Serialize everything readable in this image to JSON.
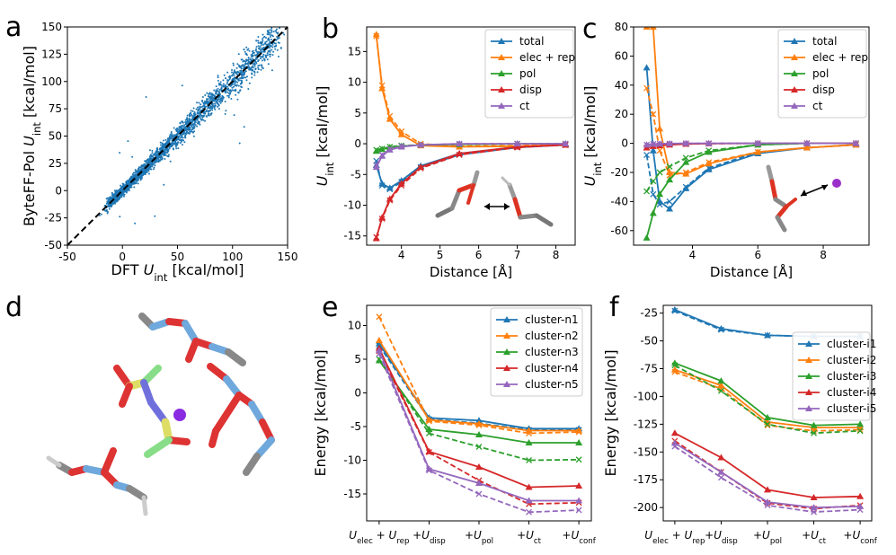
{
  "figure": {
    "panel_labels": [
      "a",
      "b",
      "c",
      "d",
      "e",
      "f"
    ]
  },
  "chart_data": [
    {
      "panel": "a",
      "type": "scatter",
      "xlabel_main": "DFT",
      "xlabel_sub": "int",
      "xlabel_unit": "[kcal/mol]",
      "ylabel_main": "ByteFF-Pol",
      "ylabel_sub": "int",
      "ylabel_unit": "[kcal/mol]",
      "u_symbol": "U",
      "xlim": [
        -50,
        150
      ],
      "ylim": [
        -50,
        150
      ],
      "xticks": [
        -50,
        0,
        50,
        100,
        150
      ],
      "yticks": [
        -50,
        -25,
        0,
        25,
        50,
        75,
        100,
        125,
        150
      ],
      "color": "#1f77b4",
      "point_count": 2500,
      "trend": {
        "slope": 1.0,
        "spread": 0.12
      },
      "reference_line": {
        "style": "dashed",
        "color": "#000000",
        "from": [
          -50,
          -50
        ],
        "to": [
          150,
          150
        ]
      }
    },
    {
      "panel": "b",
      "type": "line",
      "xlabel": "Distance [Å]",
      "ylabel_main": "U",
      "ylabel_sub": "int",
      "ylabel_unit": "[kcal/mol]",
      "xlim": [
        3.1,
        8.5
      ],
      "ylim": [
        -16.5,
        19
      ],
      "xticks": [
        4,
        5,
        6,
        7,
        8
      ],
      "yticks": [
        -15,
        -10,
        -5,
        0,
        5,
        10,
        15
      ],
      "legend_position": "top-right",
      "x": [
        3.35,
        3.5,
        3.7,
        4.0,
        4.5,
        5.5,
        7.0,
        8.25
      ],
      "series": [
        {
          "name": "total",
          "color": "#1f77b4",
          "values": [
            -3.5,
            -6.5,
            -7.2,
            -6.0,
            -3.6,
            -1.6,
            -0.5,
            -0.2
          ],
          "ref": [
            -2.8,
            -6.8,
            -7.4,
            -6.2,
            -3.8,
            -1.8,
            -0.6,
            -0.2
          ]
        },
        {
          "name": "elec + rep",
          "color": "#ff7f0e",
          "values": [
            17.8,
            9.0,
            4.0,
            1.5,
            -0.3,
            -0.5,
            -0.4,
            -0.2
          ],
          "ref": [
            17.5,
            9.5,
            4.5,
            2.0,
            0.0,
            -0.4,
            -0.3,
            -0.2
          ]
        },
        {
          "name": "pol",
          "color": "#2ca02c",
          "values": [
            -1.2,
            -0.9,
            -0.6,
            -0.4,
            -0.2,
            -0.1,
            0.0,
            0.0
          ],
          "ref": [
            -1.0,
            -0.8,
            -0.5,
            -0.3,
            -0.2,
            -0.1,
            0.0,
            0.0
          ]
        },
        {
          "name": "disp",
          "color": "#d62728",
          "values": [
            -15.4,
            -12.0,
            -9.0,
            -6.5,
            -3.8,
            -1.6,
            -0.5,
            -0.2
          ],
          "ref": [
            -15.2,
            -12.2,
            -9.2,
            -6.8,
            -4.0,
            -1.8,
            -0.6,
            -0.2
          ]
        },
        {
          "name": "ct",
          "color": "#9467bd",
          "values": [
            -3.8,
            -2.0,
            -1.0,
            -0.5,
            -0.2,
            0.0,
            0.0,
            0.0
          ],
          "ref": [
            -3.5,
            -1.8,
            -0.9,
            -0.4,
            -0.2,
            0.0,
            0.0,
            0.0
          ]
        }
      ]
    },
    {
      "panel": "c",
      "type": "line",
      "xlabel": "Distance [Å]",
      "ylabel_main": "U",
      "ylabel_sub": "int",
      "ylabel_unit": "[kcal/mol]",
      "xlim": [
        2.2,
        9.4
      ],
      "ylim": [
        -70,
        80
      ],
      "xticks": [
        4,
        6,
        8
      ],
      "yticks": [
        -60,
        -40,
        -20,
        0,
        20,
        40,
        60,
        80
      ],
      "legend_position": "top-right",
      "x": [
        2.6,
        2.8,
        3.0,
        3.3,
        3.8,
        4.5,
        6.0,
        7.5,
        9.0
      ],
      "series": [
        {
          "name": "total",
          "color": "#1f77b4",
          "values": [
            52,
            -5,
            -40,
            -45,
            -31,
            -18,
            -7,
            -3,
            -1
          ],
          "ref": [
            -8,
            -35,
            -42,
            -40,
            -30,
            -17,
            -6,
            -3,
            -1
          ]
        },
        {
          "name": "elec + rep",
          "color": "#ff7f0e",
          "values": [
            80,
            80,
            10,
            -20,
            -21,
            -14,
            -6,
            -3,
            -1
          ],
          "ref": [
            38,
            20,
            -5,
            -22,
            -20,
            -13,
            -6,
            -3,
            -1
          ]
        },
        {
          "name": "pol",
          "color": "#2ca02c",
          "values": [
            -65,
            -48,
            -35,
            -25,
            -13,
            -6,
            -1,
            0,
            0
          ],
          "ref": [
            -33,
            -26,
            -20,
            -16,
            -10,
            -5,
            -1,
            0,
            0
          ]
        },
        {
          "name": "disp",
          "color": "#d62728",
          "values": [
            -3,
            -2,
            -1.5,
            -1,
            -0.5,
            -0.2,
            0,
            0,
            0
          ],
          "ref": [
            -3,
            -2,
            -1.5,
            -1,
            -0.5,
            -0.2,
            0,
            0,
            0
          ]
        },
        {
          "name": "ct",
          "color": "#9467bd",
          "values": [
            -1,
            -0.5,
            -0.3,
            -0.2,
            0,
            0,
            0,
            0,
            0
          ],
          "ref": [
            -1,
            -0.5,
            -0.3,
            -0.2,
            0,
            0,
            0,
            0,
            0
          ]
        }
      ]
    },
    {
      "panel": "e",
      "type": "line",
      "ylabel": "Energy [kcal/mol]",
      "ylim": [
        -19,
        13
      ],
      "yticks": [
        -15,
        -10,
        -5,
        0,
        5,
        10
      ],
      "legend_position": "top-right",
      "categories": [
        "elec+rep",
        "disp",
        "pol",
        "ct",
        "conf"
      ],
      "tick_labels": [
        {
          "parts": [
            [
              "U",
              "i"
            ],
            [
              "elec",
              "s"
            ],
            [
              " + ",
              "n"
            ],
            [
              "U",
              "i"
            ],
            [
              "rep",
              "s"
            ]
          ]
        },
        {
          "parts": [
            [
              "+",
              "n"
            ],
            [
              "U",
              "i"
            ],
            [
              "disp",
              "s"
            ]
          ]
        },
        {
          "parts": [
            [
              "+",
              "n"
            ],
            [
              "U",
              "i"
            ],
            [
              "pol",
              "s"
            ]
          ]
        },
        {
          "parts": [
            [
              "+",
              "n"
            ],
            [
              "U",
              "i"
            ],
            [
              "ct",
              "s"
            ]
          ]
        },
        {
          "parts": [
            [
              "+",
              "n"
            ],
            [
              "U",
              "i"
            ],
            [
              "conf",
              "s"
            ]
          ]
        }
      ],
      "series": [
        {
          "name": "cluster-n1",
          "color": "#1f77b4",
          "values": [
            7.3,
            -3.7,
            -4.1,
            -5.3,
            -5.3
          ],
          "ref": [
            7.0,
            -3.9,
            -4.5,
            -5.5,
            -5.5
          ]
        },
        {
          "name": "cluster-n2",
          "color": "#ff7f0e",
          "values": [
            7.8,
            -4.0,
            -4.6,
            -5.6,
            -5.6
          ],
          "ref": [
            11.3,
            -4.2,
            -4.8,
            -6.0,
            -5.8
          ]
        },
        {
          "name": "cluster-n3",
          "color": "#2ca02c",
          "values": [
            4.8,
            -5.4,
            -6.2,
            -7.4,
            -7.4
          ],
          "ref": [
            5.0,
            -6.0,
            -8.0,
            -10.0,
            -9.9
          ]
        },
        {
          "name": "cluster-n4",
          "color": "#d62728",
          "values": [
            6.6,
            -8.7,
            -11.0,
            -14.0,
            -13.8
          ],
          "ref": [
            6.2,
            -8.8,
            -13.0,
            -16.5,
            -16.3
          ]
        },
        {
          "name": "cluster-n5",
          "color": "#9467bd",
          "values": [
            6.3,
            -11.3,
            -13.4,
            -16.0,
            -16.0
          ],
          "ref": [
            5.8,
            -11.5,
            -15.0,
            -17.7,
            -17.4
          ]
        }
      ]
    },
    {
      "panel": "f",
      "type": "line",
      "ylabel": "Energy [kcal/mol]",
      "ylim": [
        -212,
        -18
      ],
      "yticks": [
        -200,
        -175,
        -150,
        -125,
        -100,
        -75,
        -50,
        -25
      ],
      "legend_position": "top-right",
      "categories": [
        "elec+rep",
        "disp",
        "pol",
        "ct",
        "conf"
      ],
      "tick_labels": [
        {
          "parts": [
            [
              "U",
              "i"
            ],
            [
              "elec",
              "s"
            ],
            [
              " + ",
              "n"
            ],
            [
              "U",
              "i"
            ],
            [
              "rep",
              "s"
            ]
          ]
        },
        {
          "parts": [
            [
              "+",
              "n"
            ],
            [
              "U",
              "i"
            ],
            [
              "disp",
              "s"
            ]
          ]
        },
        {
          "parts": [
            [
              "+",
              "n"
            ],
            [
              "U",
              "i"
            ],
            [
              "pol",
              "s"
            ]
          ]
        },
        {
          "parts": [
            [
              "+",
              "n"
            ],
            [
              "U",
              "i"
            ],
            [
              "ct",
              "s"
            ]
          ]
        },
        {
          "parts": [
            [
              "+",
              "n"
            ],
            [
              "U",
              "i"
            ],
            [
              "conf",
              "s"
            ]
          ]
        }
      ],
      "series": [
        {
          "name": "cluster-i1",
          "color": "#1f77b4",
          "values": [
            -22,
            -39,
            -45,
            -46,
            -46
          ],
          "ref": [
            -23,
            -40,
            -45,
            -46,
            -46
          ]
        },
        {
          "name": "cluster-i2",
          "color": "#ff7f0e",
          "values": [
            -76,
            -90,
            -123,
            -128,
            -128
          ],
          "ref": [
            -78,
            -93,
            -126,
            -131,
            -130
          ]
        },
        {
          "name": "cluster-i3",
          "color": "#2ca02c",
          "values": [
            -70,
            -86,
            -119,
            -126,
            -125
          ],
          "ref": [
            -72,
            -95,
            -125,
            -133,
            -131
          ]
        },
        {
          "name": "cluster-i4",
          "color": "#d62728",
          "values": [
            -133,
            -155,
            -184,
            -191,
            -190
          ],
          "ref": [
            -140,
            -168,
            -196,
            -201,
            -198
          ]
        },
        {
          "name": "cluster-i5",
          "color": "#9467bd",
          "values": [
            -142,
            -168,
            -195,
            -200,
            -199
          ],
          "ref": [
            -145,
            -173,
            -198,
            -204,
            -202
          ]
        }
      ]
    }
  ]
}
